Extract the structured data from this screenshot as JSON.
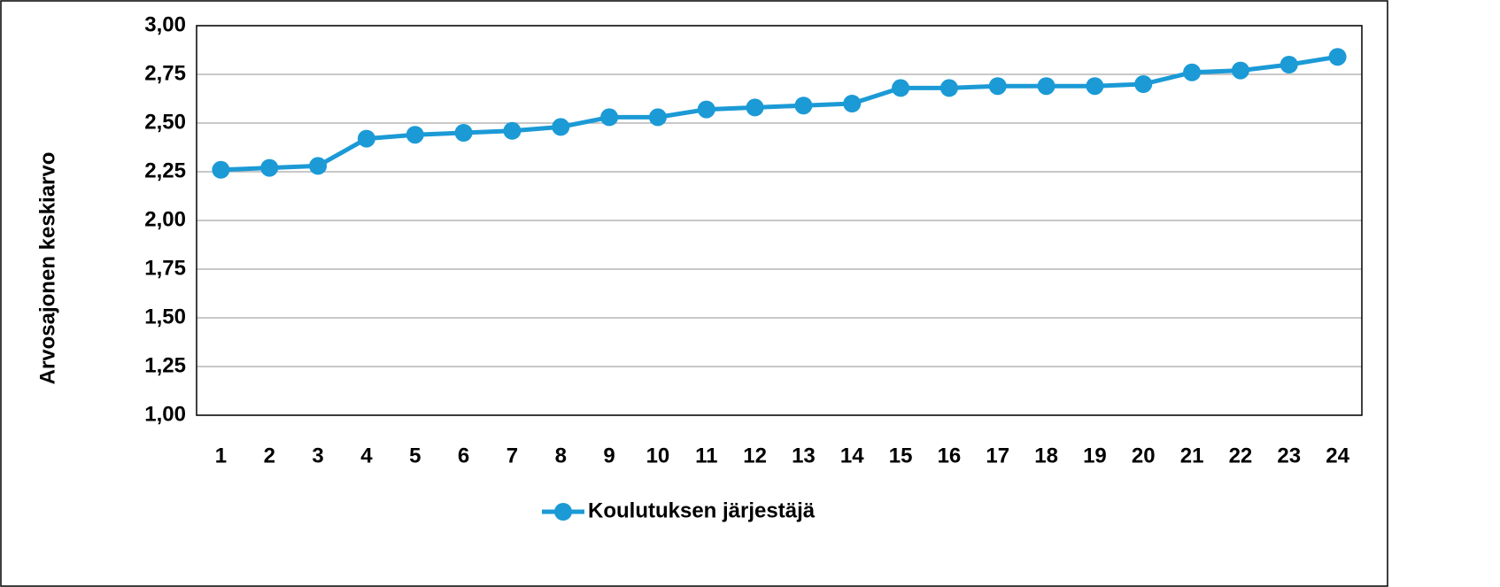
{
  "chart_data": {
    "type": "line",
    "y_label": "Arvosajonen keskiarvo",
    "categories": [
      "1",
      "2",
      "3",
      "4",
      "5",
      "6",
      "7",
      "8",
      "9",
      "10",
      "11",
      "12",
      "13",
      "14",
      "15",
      "16",
      "17",
      "18",
      "19",
      "20",
      "21",
      "22",
      "23",
      "24"
    ],
    "series": [
      {
        "name": "Koulutuksen järjestäjä",
        "color": "#1b9ad6",
        "values": [
          2.26,
          2.27,
          2.28,
          2.42,
          2.44,
          2.45,
          2.46,
          2.48,
          2.53,
          2.53,
          2.57,
          2.58,
          2.59,
          2.6,
          2.68,
          2.68,
          2.69,
          2.69,
          2.69,
          2.7,
          2.76,
          2.77,
          2.8,
          2.84
        ]
      }
    ],
    "ylim": [
      1,
      3
    ],
    "yticks": [
      {
        "value": 1,
        "label": "1,00"
      },
      {
        "value": 1.25,
        "label": "1,25"
      },
      {
        "value": 1.5,
        "label": "1,50"
      },
      {
        "value": 1.75,
        "label": "1,75"
      },
      {
        "value": 2,
        "label": "2,00"
      },
      {
        "value": 2.25,
        "label": "2,25"
      },
      {
        "value": 2.5,
        "label": "2,50"
      },
      {
        "value": 2.75,
        "label": "2,75"
      },
      {
        "value": 3,
        "label": "3,00"
      }
    ],
    "grid": true,
    "legend": "bottom"
  }
}
